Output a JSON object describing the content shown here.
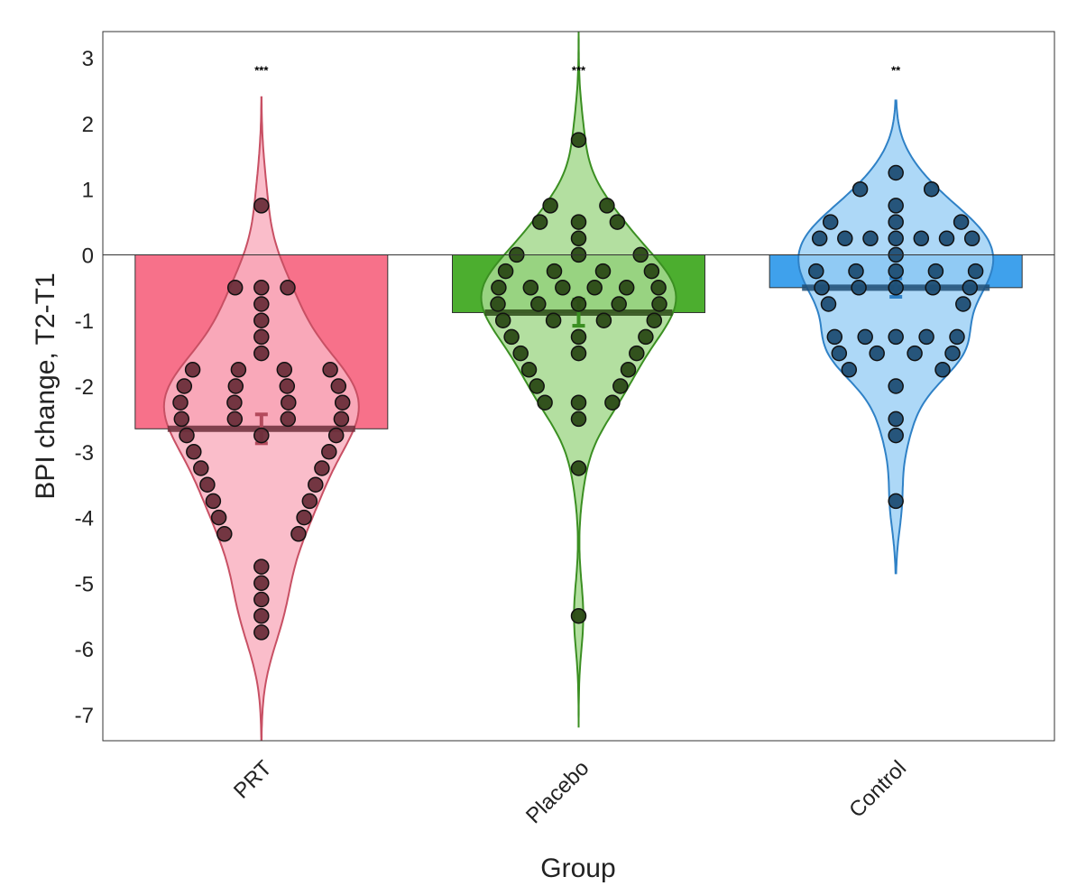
{
  "chart_data": {
    "type": "bar",
    "xlabel": "Group",
    "ylabel": "BPI change, T2-T1",
    "ylim": [
      -7.4,
      3.4
    ],
    "yticks": [
      "-7",
      "-6",
      "-5",
      "-4",
      "-3",
      "-2",
      "-1",
      "0",
      "1",
      "2",
      "3"
    ],
    "categories": [
      "PRT",
      "Placebo",
      "Control"
    ],
    "values": [
      -2.65,
      -0.88,
      -0.5
    ],
    "significance": [
      "***",
      "***",
      "**"
    ],
    "error_bars": [
      {
        "mean": -2.65,
        "lower": -2.87,
        "upper": -2.43
      },
      {
        "mean": -0.88,
        "lower": -1.08,
        "upper": -0.68
      },
      {
        "mean": -0.5,
        "lower": -0.64,
        "upper": -0.36
      }
    ],
    "group_colors": {
      "PRT": {
        "bar": "#f7718a",
        "violin": "#f9b2c1",
        "violin_line": "#c85064",
        "point": "#6b2e3a",
        "errbar": "#b34a5c"
      },
      "Placebo": {
        "bar": "#4cae2f",
        "violin": "#a6d98f",
        "violin_line": "#3b8f22",
        "point": "#2b4a16",
        "errbar": "#3b8f22"
      },
      "Control": {
        "bar": "#3fa1ec",
        "violin": "#9fd1f6",
        "violin_line": "#2f81c6",
        "point": "#1f4e74",
        "errbar": "#2f81c6"
      }
    },
    "violin_range": [
      {
        "min": -7.4,
        "max": 2.4
      },
      {
        "min": -7.2,
        "max": 3.4
      },
      {
        "min": -4.85,
        "max": 2.35
      }
    ],
    "points": [
      [
        0.75,
        -0.5,
        -0.5,
        -0.5,
        -0.75,
        -1.0,
        -1.25,
        -1.5,
        -1.75,
        -1.75,
        -1.75,
        -1.75,
        -2.0,
        -2.0,
        -2.0,
        -2.0,
        -2.25,
        -2.25,
        -2.25,
        -2.25,
        -2.5,
        -2.5,
        -2.5,
        -2.5,
        -2.75,
        -2.75,
        -2.75,
        -3.0,
        -3.0,
        -3.25,
        -3.25,
        -3.5,
        -3.5,
        -3.75,
        -3.75,
        -4.0,
        -4.0,
        -4.25,
        -4.25,
        -4.75,
        -5.0,
        -5.25,
        -5.5,
        -5.75
      ],
      [
        1.75,
        0.75,
        0.75,
        0.5,
        0.5,
        0.5,
        0.25,
        0.0,
        0.0,
        0.0,
        -0.25,
        -0.25,
        -0.25,
        -0.25,
        -0.5,
        -0.5,
        -0.5,
        -0.5,
        -0.5,
        -0.5,
        -0.75,
        -0.75,
        -0.75,
        -0.75,
        -0.75,
        -1.0,
        -1.0,
        -1.0,
        -1.0,
        -1.25,
        -1.25,
        -1.25,
        -1.5,
        -1.5,
        -1.5,
        -1.75,
        -1.75,
        -2.0,
        -2.0,
        -2.25,
        -2.25,
        -2.25,
        -2.5,
        -3.25,
        -5.5
      ],
      [
        1.25,
        1.0,
        1.0,
        0.75,
        0.5,
        0.5,
        0.5,
        0.25,
        0.25,
        0.25,
        0.25,
        0.25,
        0.25,
        0.25,
        0.0,
        -0.25,
        -0.25,
        -0.25,
        -0.25,
        -0.25,
        -0.5,
        -0.5,
        -0.5,
        -0.5,
        -0.5,
        -0.75,
        -0.75,
        -1.25,
        -1.25,
        -1.25,
        -1.25,
        -1.25,
        -1.5,
        -1.5,
        -1.5,
        -1.5,
        -1.75,
        -1.75,
        -2.0,
        -2.5,
        -2.75,
        -3.75
      ]
    ],
    "grid": false,
    "reference_line": 0
  }
}
